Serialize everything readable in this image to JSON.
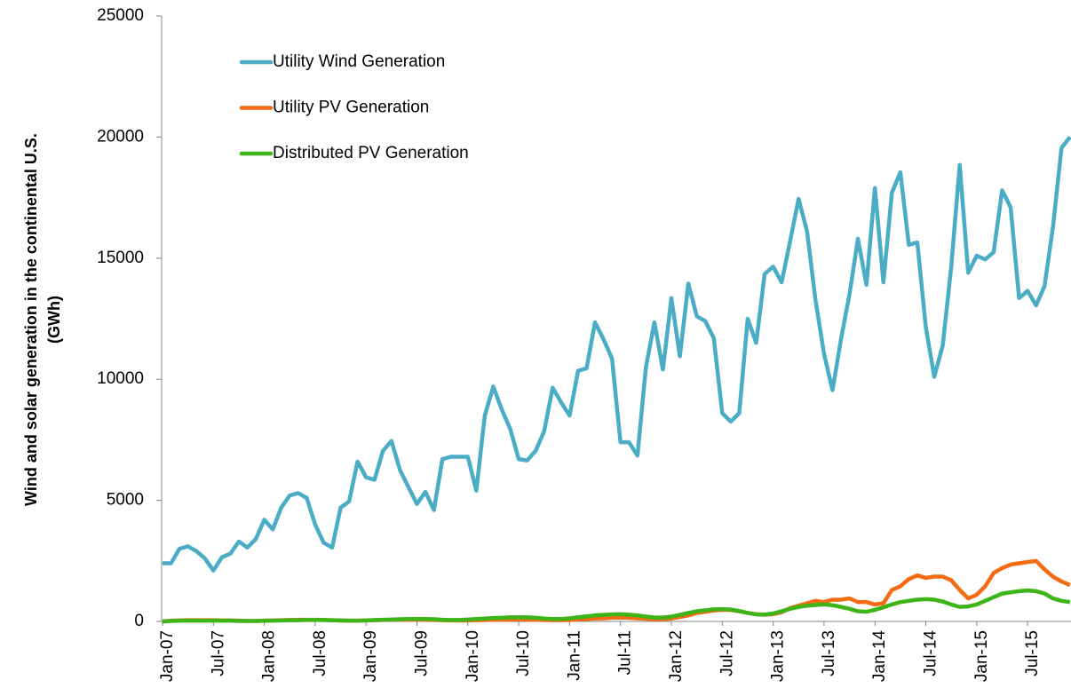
{
  "chart_data": {
    "type": "line",
    "ylabel": [
      "Wind and solar generation in the continental U.S.",
      "(GWh)"
    ],
    "categories": [
      "Jan-07",
      null,
      null,
      null,
      null,
      null,
      "Jul-07",
      null,
      null,
      null,
      null,
      null,
      "Jan-08",
      null,
      null,
      null,
      null,
      null,
      "Jul-08",
      null,
      null,
      null,
      null,
      null,
      "Jan-09",
      null,
      null,
      null,
      null,
      null,
      "Jul-09",
      null,
      null,
      null,
      null,
      null,
      "Jan-10",
      null,
      null,
      null,
      null,
      null,
      "Jul-10",
      null,
      null,
      null,
      null,
      null,
      "Jan-11",
      null,
      null,
      null,
      null,
      null,
      "Jul-11",
      null,
      null,
      null,
      null,
      null,
      "Jan-12",
      null,
      null,
      null,
      null,
      null,
      "Jul-12",
      null,
      null,
      null,
      null,
      null,
      "Jan-13",
      null,
      null,
      null,
      null,
      null,
      "Jul-13",
      null,
      null,
      null,
      null,
      null,
      "Jan-14",
      null,
      null,
      null,
      null,
      null,
      "Jul-14",
      null,
      null,
      null,
      null,
      null,
      "Jan-15",
      null,
      null,
      null,
      null,
      null,
      "Jul-15",
      null,
      null,
      null,
      null,
      null
    ],
    "series": [
      {
        "name": "Utility Wind Generation",
        "color": "#4bacc6",
        "values": [
          2400,
          2400,
          3000,
          3100,
          2900,
          2600,
          2100,
          2650,
          2800,
          3300,
          3050,
          3400,
          4200,
          3800,
          4700,
          5200,
          5300,
          5100,
          4000,
          3250,
          3050,
          4700,
          4950,
          6600,
          5950,
          5850,
          7050,
          7450,
          6250,
          5550,
          4850,
          5350,
          4600,
          6700,
          6800,
          6800,
          6800,
          5400,
          8500,
          9700,
          8750,
          7950,
          6700,
          6650,
          7050,
          7850,
          9650,
          9050,
          8500,
          10350,
          10450,
          12350,
          11650,
          10850,
          7400,
          7400,
          6850,
          10500,
          12350,
          10400,
          13350,
          10950,
          13950,
          12600,
          12400,
          11700,
          8600,
          8250,
          8600,
          12500,
          11500,
          14350,
          14650,
          14000,
          15700,
          17450,
          16100,
          13250,
          11050,
          9550,
          11650,
          13500,
          15800,
          13900,
          17900,
          14000,
          17700,
          18550,
          15550,
          15650,
          12150,
          10100,
          11400,
          14650,
          18850,
          14400,
          15100,
          14950,
          15250,
          17800,
          17100,
          13350,
          13650,
          13050,
          13850,
          16300,
          19550,
          20000
        ]
      },
      {
        "name": "Utility PV Generation",
        "color": "#f46b14",
        "values": [
          0,
          30,
          40,
          50,
          50,
          50,
          50,
          40,
          40,
          30,
          20,
          20,
          30,
          40,
          50,
          60,
          70,
          70,
          70,
          60,
          50,
          40,
          30,
          30,
          40,
          50,
          60,
          70,
          70,
          70,
          70,
          70,
          60,
          50,
          40,
          40,
          40,
          50,
          60,
          70,
          70,
          80,
          80,
          80,
          70,
          60,
          50,
          50,
          60,
          80,
          100,
          120,
          130,
          150,
          160,
          150,
          130,
          110,
          90,
          90,
          120,
          180,
          250,
          350,
          400,
          450,
          480,
          470,
          420,
          350,
          300,
          280,
          300,
          380,
          550,
          650,
          750,
          850,
          800,
          900,
          900,
          950,
          800,
          800,
          700,
          750,
          1300,
          1450,
          1750,
          1900,
          1800,
          1850,
          1850,
          1700,
          1300,
          950,
          1100,
          1450,
          2000,
          2200,
          2350,
          2400,
          2450,
          2500,
          2150,
          1850,
          1650,
          1500
        ]
      },
      {
        "name": "Distributed PV Generation",
        "color": "#3db518",
        "values": [
          0,
          20,
          30,
          30,
          30,
          30,
          30,
          30,
          30,
          20,
          20,
          20,
          30,
          30,
          40,
          50,
          50,
          60,
          60,
          60,
          50,
          40,
          30,
          30,
          40,
          60,
          70,
          80,
          90,
          100,
          100,
          100,
          90,
          70,
          60,
          60,
          80,
          100,
          120,
          140,
          150,
          170,
          170,
          170,
          150,
          120,
          100,
          100,
          130,
          170,
          210,
          250,
          270,
          290,
          300,
          280,
          250,
          200,
          160,
          160,
          200,
          270,
          350,
          420,
          460,
          500,
          510,
          490,
          430,
          350,
          290,
          280,
          330,
          420,
          520,
          600,
          650,
          680,
          700,
          670,
          600,
          520,
          420,
          400,
          480,
          580,
          700,
          800,
          850,
          900,
          920,
          900,
          820,
          700,
          600,
          620,
          700,
          850,
          1000,
          1150,
          1200,
          1250,
          1280,
          1250,
          1150,
          950,
          850,
          800
        ]
      }
    ],
    "ylim": [
      0,
      25000
    ],
    "yticks": [
      0,
      5000,
      10000,
      15000,
      20000,
      25000
    ],
    "legend": "top-left"
  }
}
